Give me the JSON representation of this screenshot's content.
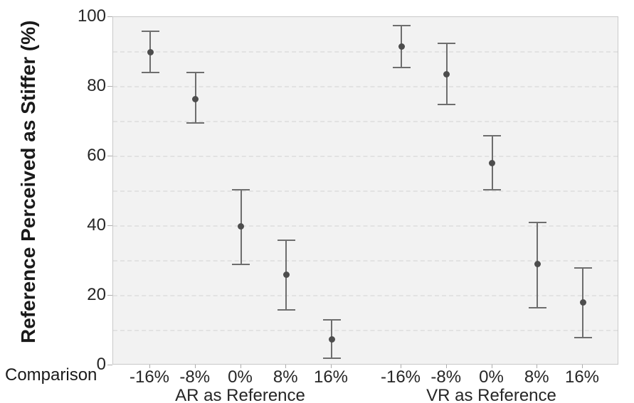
{
  "chart_data": {
    "type": "scatter",
    "title": "",
    "ylabel": "Reference Perceived as Stiffer (%)",
    "xlabel": "Comparison",
    "ylim": [
      0,
      100
    ],
    "y_ticks": [
      0,
      20,
      40,
      60,
      80,
      100
    ],
    "grid_step": 10,
    "grid": "horizontal dashed minor gridlines every 10, on",
    "legend_position": "none",
    "marker": "circle with vertical error bars (capped)",
    "colors": {
      "point": "#4d4d4d",
      "error_bar": "#6e6e6e",
      "plot_background": "#f2f2f2",
      "plot_border": "#c9c9c9",
      "gridline": "#e2e2e2",
      "tick_text": "#262626"
    },
    "groups": [
      {
        "label": "AR as Reference",
        "categories": [
          "-16%",
          "-8%",
          "0%",
          "8%",
          "16%"
        ],
        "means": [
          90,
          76.5,
          40,
          26,
          7.5
        ],
        "ci_low": [
          84,
          69.5,
          29,
          16,
          2
        ],
        "ci_high": [
          96,
          84,
          50.5,
          36,
          13
        ]
      },
      {
        "label": "VR as Reference",
        "categories": [
          "-16%",
          "-8%",
          "0%",
          "8%",
          "16%"
        ],
        "means": [
          91.5,
          83.5,
          58,
          29,
          18
        ],
        "ci_low": [
          85.5,
          75,
          50.5,
          16.5,
          8
        ],
        "ci_high": [
          97.5,
          92.5,
          66,
          41,
          28
        ]
      }
    ]
  }
}
